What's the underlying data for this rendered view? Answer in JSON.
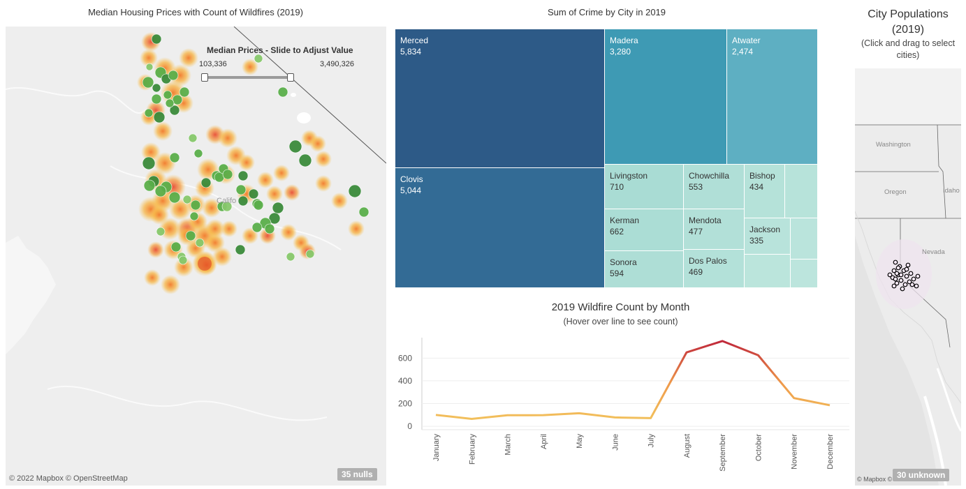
{
  "map_panel": {
    "title": "Median Housing Prices with Count of Wildfires (2019)",
    "slider_title": "Median Prices - Slide to Adjust Value",
    "slider_min": "103,336",
    "slider_max": "3,490,326",
    "state_label": "Califo",
    "attribution": "© 2022 Mapbox © OpenStreetMap",
    "nulls_badge": "35 nulls"
  },
  "treemap": {
    "title": "Sum of Crime by City in 2019",
    "cities": [
      {
        "name": "Merced",
        "value": "5,834"
      },
      {
        "name": "Clovis",
        "value": "5,044"
      },
      {
        "name": "Madera",
        "value": "3,280"
      },
      {
        "name": "Atwater",
        "value": "2,474"
      },
      {
        "name": "Livingston",
        "value": "710"
      },
      {
        "name": "Kerman",
        "value": "662"
      },
      {
        "name": "Sonora",
        "value": "594"
      },
      {
        "name": "Chowchilla",
        "value": "553"
      },
      {
        "name": "Mendota",
        "value": "477"
      },
      {
        "name": "Dos Palos",
        "value": "469"
      },
      {
        "name": "Bishop",
        "value": "434"
      },
      {
        "name": "Jackson",
        "value": "335"
      }
    ],
    "colors": {
      "dark": "#2d5a87",
      "mid": "#3e9ab4",
      "light": "#5eafc2",
      "pale": "#b5e2d8"
    }
  },
  "chart_data": {
    "type": "line",
    "title": "2019 Wildfire Count by Month",
    "subtitle": "(Hover over line to see count)",
    "categories": [
      "January",
      "February",
      "March",
      "April",
      "May",
      "June",
      "July",
      "August",
      "September",
      "October",
      "November",
      "December"
    ],
    "values": [
      100,
      65,
      97,
      98,
      115,
      78,
      72,
      650,
      750,
      625,
      248,
      185
    ],
    "yticks": [
      0,
      200,
      400,
      600
    ],
    "ylim": [
      -30,
      780
    ],
    "color_low": "#f2c05c",
    "color_high": "#c0283a",
    "grid": true
  },
  "population_panel": {
    "title": "City Populations (2019)",
    "subtitle": "(Click and drag to select cities)",
    "states": [
      "Washington",
      "Oregon",
      "Idaho",
      "Nevada"
    ],
    "attribution": "© Mapbox © OSM",
    "unknown_badge": "30 unknown"
  }
}
